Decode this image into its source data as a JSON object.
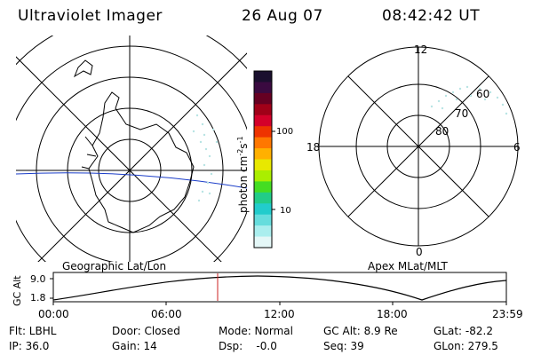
{
  "header": {
    "instrument": "Ultraviolet Imager",
    "date": "26 Aug 07",
    "time": "08:42:42 UT"
  },
  "left_panel": {
    "caption": "Geographic Lat/Lon"
  },
  "right_panel": {
    "caption": "Apex MLat/MLT",
    "mlt_labels": {
      "top": "12",
      "left": "18",
      "right": "6",
      "bottom": "0"
    },
    "lat_labels": [
      "60",
      "70",
      "80"
    ]
  },
  "colorbar": {
    "title": "photon cm",
    "title_sup1": "-2",
    "title_mid": "s",
    "title_sup2": "-1",
    "ticks": [
      "100",
      "10"
    ],
    "colors": [
      "#1a0f2e",
      "#3a0a40",
      "#660022",
      "#a00018",
      "#d4002a",
      "#ee3300",
      "#ff7700",
      "#ffb000",
      "#e8e800",
      "#aaee00",
      "#44dd22",
      "#22cc88",
      "#22cccc",
      "#66dddd",
      "#aaeeee",
      "#e4f7f7"
    ]
  },
  "altitude_plot": {
    "ylabel": "GC Alt",
    "yticks": [
      "9.0",
      "1.8"
    ],
    "xticks": [
      "00:00",
      "06:00",
      "12:00",
      "18:00",
      "23:59"
    ],
    "marker_time": "08:42:42"
  },
  "status": {
    "row1": [
      {
        "key": "flt",
        "text": "Flt: LBHL"
      },
      {
        "key": "door",
        "text": "Door: Closed"
      },
      {
        "key": "mode",
        "text": "Mode: Normal"
      },
      {
        "key": "gcalt",
        "text": "GC Alt: 8.9 Re"
      },
      {
        "key": "glat",
        "text": "GLat: -82.2"
      }
    ],
    "row2": [
      {
        "key": "ip",
        "text": "IP: 36.0"
      },
      {
        "key": "gain",
        "text": "Gain: 14"
      },
      {
        "key": "dsp",
        "text": "Dsp:    -0.0"
      },
      {
        "key": "seq",
        "text": "Seq: 39"
      },
      {
        "key": "glon",
        "text": "GLon: 279.5"
      }
    ]
  }
}
